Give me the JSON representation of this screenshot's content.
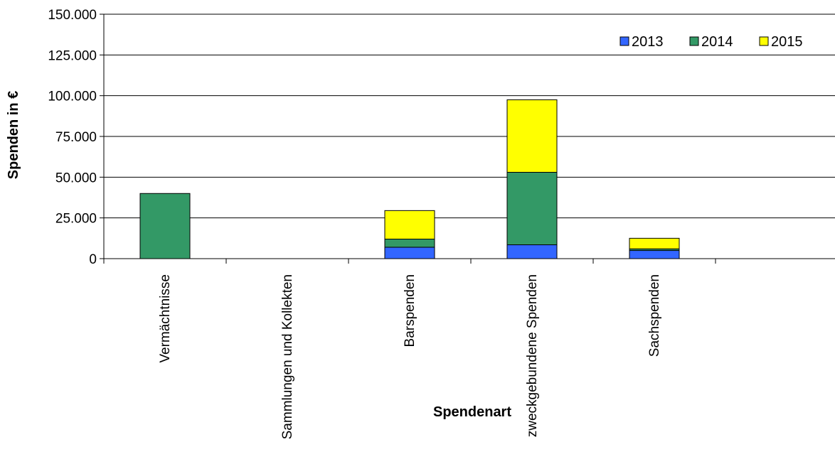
{
  "chart_data": {
    "type": "bar",
    "stacked": true,
    "categories": [
      "Vermächtnisse",
      "Sammlungen und Kollekten",
      "Barspenden",
      "zweckgebundene Spenden",
      "Sachspenden"
    ],
    "series": [
      {
        "name": "2013",
        "color": "#3366ff",
        "values": [
          0,
          0,
          7000,
          8500,
          5000
        ]
      },
      {
        "name": "2014",
        "color": "#339966",
        "values": [
          40000,
          0,
          5000,
          44500,
          1000
        ]
      },
      {
        "name": "2015",
        "color": "#ffff00",
        "values": [
          0,
          0,
          17500,
          44500,
          6500
        ]
      }
    ],
    "ylim": [
      0,
      150000
    ],
    "y_ticks": [
      "0",
      "25.000",
      "50.000",
      "75.000",
      "100.000",
      "125.000",
      "150.000"
    ],
    "ylabel": "Spenden in €",
    "xlabel": "Spendenart",
    "grid": true,
    "legend_position": "top-right"
  }
}
